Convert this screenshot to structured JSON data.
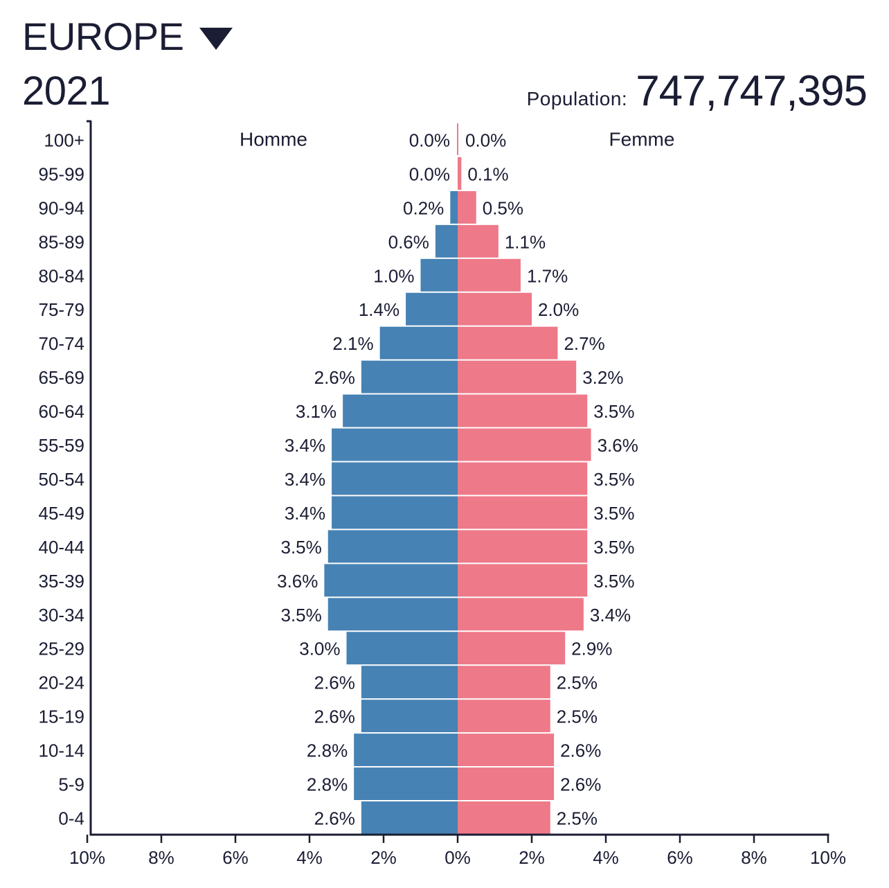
{
  "header": {
    "region": "EUROPE",
    "year": "2021",
    "population_label": "Population:",
    "population_value": "747,747,395"
  },
  "colors": {
    "male": "#4682b4",
    "female": "#ee7989",
    "axis": "#1a1d33"
  },
  "chart_data": {
    "type": "bar",
    "orientation": "horizontal",
    "title": "",
    "categories": [
      "100+",
      "95-99",
      "90-94",
      "85-89",
      "80-84",
      "75-79",
      "70-74",
      "65-69",
      "60-64",
      "55-59",
      "50-54",
      "45-49",
      "40-44",
      "35-39",
      "30-34",
      "25-29",
      "20-24",
      "15-19",
      "10-14",
      "5-9",
      "0-4"
    ],
    "series": [
      {
        "name": "Homme",
        "values": [
          0.0,
          0.0,
          0.2,
          0.6,
          1.0,
          1.4,
          2.1,
          2.6,
          3.1,
          3.4,
          3.4,
          3.4,
          3.5,
          3.6,
          3.5,
          3.0,
          2.6,
          2.6,
          2.8,
          2.8,
          2.6
        ],
        "labels": [
          "0.0%",
          "0.0%",
          "0.2%",
          "0.6%",
          "1.0%",
          "1.4%",
          "2.1%",
          "2.6%",
          "3.1%",
          "3.4%",
          "3.4%",
          "3.4%",
          "3.5%",
          "3.6%",
          "3.5%",
          "3.0%",
          "2.6%",
          "2.6%",
          "2.8%",
          "2.8%",
          "2.6%"
        ]
      },
      {
        "name": "Femme",
        "values": [
          0.0,
          0.1,
          0.5,
          1.1,
          1.7,
          2.0,
          2.7,
          3.2,
          3.5,
          3.6,
          3.5,
          3.5,
          3.5,
          3.5,
          3.4,
          2.9,
          2.5,
          2.5,
          2.6,
          2.6,
          2.5
        ],
        "labels": [
          "0.0%",
          "0.1%",
          "0.5%",
          "1.1%",
          "1.7%",
          "2.0%",
          "2.7%",
          "3.2%",
          "3.5%",
          "3.6%",
          "3.5%",
          "3.5%",
          "3.5%",
          "3.5%",
          "3.4%",
          "2.9%",
          "2.5%",
          "2.5%",
          "2.6%",
          "2.6%",
          "2.5%"
        ]
      }
    ],
    "xlim": [
      -10,
      10
    ],
    "x_ticks": [
      "10%",
      "8%",
      "6%",
      "4%",
      "2%",
      "0%",
      "2%",
      "4%",
      "6%",
      "8%",
      "10%"
    ],
    "grid": false
  }
}
